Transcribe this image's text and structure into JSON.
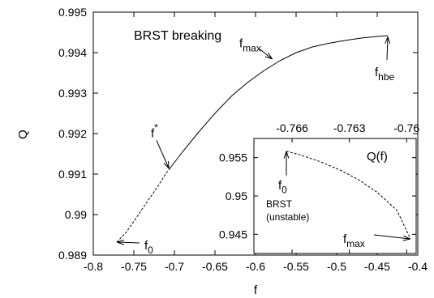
{
  "chart_data": [
    {
      "type": "line",
      "title": "BRST breaking",
      "xlabel": "f",
      "ylabel": "Q",
      "xlim": [
        -0.8,
        -0.4
      ],
      "ylim": [
        0.989,
        0.995
      ],
      "x_ticks": [
        -0.8,
        -0.75,
        -0.7,
        -0.65,
        -0.6,
        -0.55,
        -0.5,
        -0.45,
        -0.4
      ],
      "x_tick_labels": [
        "-0.8",
        "-0.75",
        "-0.7",
        "-0.65",
        "-0.6",
        "-0.55",
        "-0.5",
        "-0.45",
        "-0.4"
      ],
      "y_ticks": [
        0.989,
        0.99,
        0.991,
        0.992,
        0.993,
        0.994,
        0.995
      ],
      "y_tick_labels": [
        "0.989",
        "0.99",
        "0.991",
        "0.992",
        "0.993",
        "0.994",
        "0.995"
      ],
      "grid": false,
      "series": [
        {
          "style": "dashed",
          "x": [
            -0.771,
            -0.76,
            -0.75,
            -0.74,
            -0.73,
            -0.72,
            -0.71,
            -0.706
          ],
          "y": [
            0.98932,
            0.98955,
            0.98983,
            0.99013,
            0.99042,
            0.99071,
            0.99103,
            0.99113
          ]
        },
        {
          "style": "solid",
          "x": [
            -0.706,
            -0.69,
            -0.67,
            -0.65,
            -0.63,
            -0.61,
            -0.59,
            -0.57,
            -0.55,
            -0.53,
            -0.51,
            -0.49,
            -0.47,
            -0.45,
            -0.437
          ],
          "y": [
            0.99113,
            0.99155,
            0.99204,
            0.9925,
            0.99292,
            0.99326,
            0.99355,
            0.9938,
            0.994,
            0.99414,
            0.99423,
            0.9943,
            0.99436,
            0.9944,
            0.99442
          ]
        }
      ],
      "annotations": [
        {
          "id": "f0",
          "text": "f",
          "sub": "0",
          "x": -0.771,
          "y": 0.98932
        },
        {
          "id": "fstar",
          "text": "f",
          "sup": "*",
          "x": -0.706,
          "y": 0.99113
        },
        {
          "id": "fmax",
          "text": "f",
          "sub": "max",
          "x": -0.579,
          "y": 0.99383
        },
        {
          "id": "fhbe",
          "text": "f",
          "sub": "hbe",
          "x": -0.437,
          "y": 0.99442
        }
      ]
    },
    {
      "type": "line",
      "title": "Q(f)",
      "xlim": [
        -0.768,
        -0.7595
      ],
      "ylim": [
        0.9425,
        0.9575
      ],
      "x_ticks": [
        -0.766,
        -0.763,
        -0.76
      ],
      "x_tick_labels": [
        "-0.766",
        "-0.763",
        "-0.76"
      ],
      "y_ticks": [
        0.945,
        0.95,
        0.955
      ],
      "y_tick_labels": [
        "0.945",
        "0.95",
        "0.955"
      ],
      "grid": false,
      "inner_label": [
        "BRST",
        "(unstable)"
      ],
      "series": [
        {
          "style": "dashed",
          "x": [
            -0.7663,
            -0.7655,
            -0.7645,
            -0.7635,
            -0.7625,
            -0.7615,
            -0.7605,
            -0.7598
          ],
          "y": [
            0.95585,
            0.9553,
            0.95445,
            0.9534,
            0.9521,
            0.9504,
            0.9481,
            0.9444
          ]
        }
      ],
      "annotations": [
        {
          "id": "inset-f0",
          "text": "f",
          "sub": "0",
          "x": -0.7663,
          "y": 0.95585
        },
        {
          "id": "inset-fmax",
          "text": "f",
          "sub": "max",
          "x": -0.7598,
          "y": 0.9444
        }
      ]
    }
  ]
}
